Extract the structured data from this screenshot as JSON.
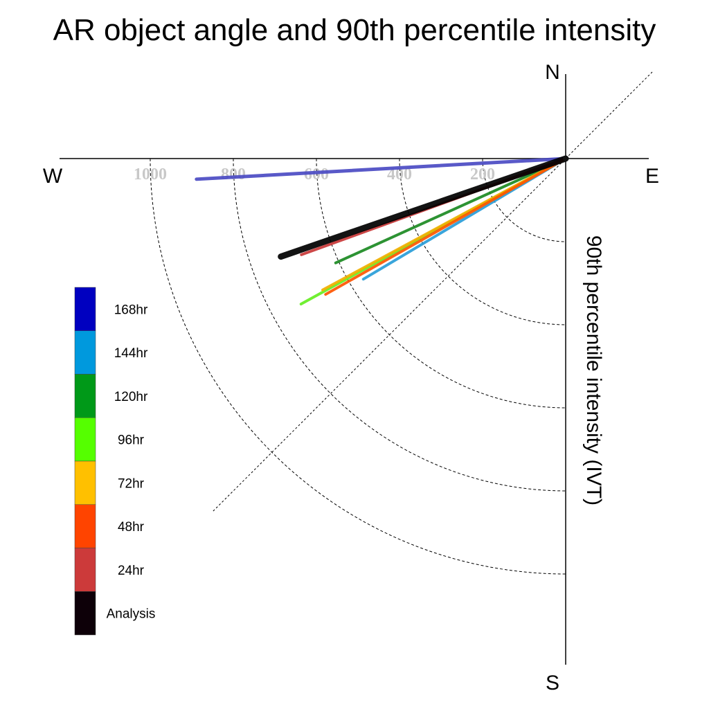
{
  "chart_data": {
    "type": "polar-line",
    "title": "AR object angle and 90th percentile intensity",
    "radial_label": "90th percentile intensity (IVT)",
    "compass": {
      "north": "N",
      "south": "S",
      "east": "E",
      "west": "W"
    },
    "radial_ticks": [
      200,
      400,
      600,
      800,
      1000
    ],
    "radial_tick_labels": [
      "200",
      "400",
      "600",
      "800",
      "1000"
    ],
    "radial_max": 1200,
    "grid": true,
    "legend_position": "left",
    "legend": [
      {
        "name": "168hr",
        "color": "#0000c0"
      },
      {
        "name": "144hr",
        "color": "#0099dd"
      },
      {
        "name": "120hr",
        "color": "#009918"
      },
      {
        "name": "96hr",
        "color": "#55ff00"
      },
      {
        "name": "72hr",
        "color": "#ffc000"
      },
      {
        "name": "48hr",
        "color": "#ff4400"
      },
      {
        "name": "24hr",
        "color": "#cc3a3a"
      },
      {
        "name": "Analysis",
        "color": "#0d0008"
      }
    ],
    "series": [
      {
        "name": "168hr",
        "intensity": 890,
        "angle_deg": 266.8,
        "color": "#4b4bc4",
        "width": 5
      },
      {
        "name": "144hr",
        "intensity": 567,
        "angle_deg": 239.2,
        "color": "#2a9ed8",
        "width": 4
      },
      {
        "name": "120hr",
        "intensity": 608,
        "angle_deg": 245.6,
        "color": "#1c8a22",
        "width": 4
      },
      {
        "name": "96hr",
        "intensity": 727,
        "angle_deg": 241.2,
        "color": "#66ee22",
        "width": 4
      },
      {
        "name": "72hr",
        "intensity": 665,
        "angle_deg": 241.6,
        "color": "#f0b000",
        "width": 4
      },
      {
        "name": "48hr",
        "intensity": 664,
        "angle_deg": 240.5,
        "color": "#ff5500",
        "width": 4
      },
      {
        "name": "24hr",
        "intensity": 677,
        "angle_deg": 250.0,
        "color": "#c83838",
        "width": 4
      },
      {
        "name": "Analysis",
        "intensity": 725,
        "angle_deg": 251.0,
        "color": "#000000",
        "width": 9
      }
    ]
  }
}
